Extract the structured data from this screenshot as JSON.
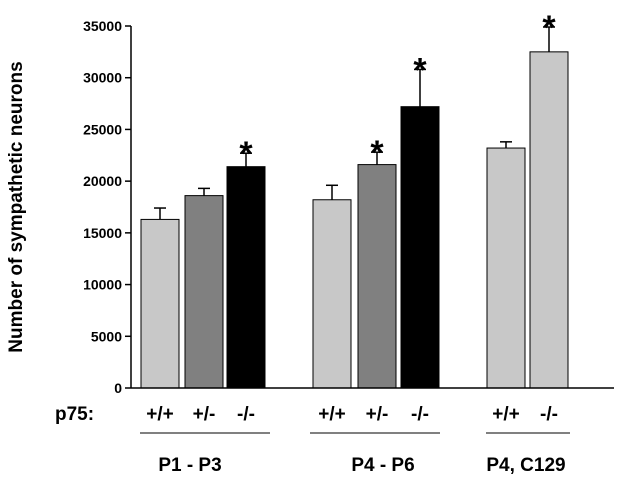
{
  "chart_data": {
    "type": "bar",
    "title": "",
    "xlabel": "",
    "ylabel": "Number of sympathetic neurons",
    "ylim": [
      0,
      35000
    ],
    "yticks": [
      0,
      5000,
      10000,
      15000,
      20000,
      25000,
      30000,
      35000
    ],
    "row_label": "p75:",
    "grid": false,
    "legend": "none",
    "groups": [
      {
        "name": "P1 - P3",
        "bars": [
          {
            "label": "+/+",
            "value": 16300,
            "error": 1100,
            "color": "#c8c8c8",
            "annotation": ""
          },
          {
            "label": "+/-",
            "value": 18600,
            "error": 700,
            "color": "#808080",
            "annotation": ""
          },
          {
            "label": "-/-",
            "value": 21400,
            "error": 1300,
            "color": "#000000",
            "annotation": "*"
          }
        ]
      },
      {
        "name": "P4 - P6",
        "bars": [
          {
            "label": "+/+",
            "value": 18200,
            "error": 1400,
            "color": "#c8c8c8",
            "annotation": ""
          },
          {
            "label": "+/-",
            "value": 21600,
            "error": 1200,
            "color": "#808080",
            "annotation": "*"
          },
          {
            "label": "-/-",
            "value": 27200,
            "error": 3600,
            "color": "#000000",
            "annotation": "*"
          }
        ]
      },
      {
        "name": "P4, C129",
        "bars": [
          {
            "label": "+/+",
            "value": 23200,
            "error": 600,
            "color": "#c8c8c8",
            "annotation": ""
          },
          {
            "label": "-/-",
            "value": 32500,
            "error": 2400,
            "color": "#c8c8c8",
            "annotation": "*"
          }
        ]
      }
    ]
  }
}
